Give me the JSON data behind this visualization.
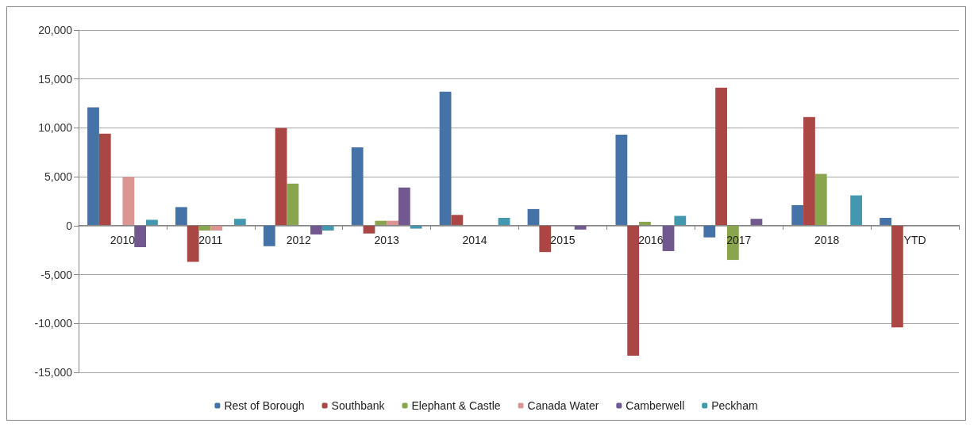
{
  "chart_data": {
    "type": "bar",
    "categories": [
      "2010",
      "2011",
      "2012",
      "2013",
      "2014",
      "2015",
      "2016",
      "2017",
      "2018",
      "YTD"
    ],
    "series": [
      {
        "name": "Rest of Borough",
        "color": "#4572a7",
        "values": [
          12100,
          1900,
          -2100,
          8000,
          13700,
          1700,
          9300,
          -1200,
          2100,
          800
        ]
      },
      {
        "name": "Southbank",
        "color": "#aa4643",
        "values": [
          9400,
          -3700,
          10000,
          -800,
          1100,
          -2700,
          -13300,
          14100,
          11100,
          -10400
        ]
      },
      {
        "name": "Elephant & Castle",
        "color": "#89a54e",
        "values": [
          null,
          -500,
          4300,
          500,
          null,
          null,
          400,
          -3500,
          5300,
          null
        ]
      },
      {
        "name": "Canada Water",
        "color": "#db9694",
        "values": [
          5000,
          -500,
          null,
          500,
          null,
          null,
          null,
          null,
          null,
          null
        ]
      },
      {
        "name": "Camberwell",
        "color": "#71588f",
        "values": [
          -2200,
          null,
          -900,
          3900,
          null,
          -400,
          -2600,
          700,
          null,
          null
        ]
      },
      {
        "name": "Peckham",
        "color": "#4198af",
        "values": [
          600,
          700,
          -500,
          -300,
          800,
          null,
          1000,
          null,
          3100,
          null
        ]
      }
    ],
    "ylim": [
      -15000,
      20000
    ],
    "yticks": [
      {
        "value": -15000,
        "label": "-15,000"
      },
      {
        "value": -10000,
        "label": "-10,000"
      },
      {
        "value": -5000,
        "label": "-5,000"
      },
      0,
      {
        "value": 5000,
        "label": "5,000"
      },
      {
        "value": 10000,
        "label": "10,000"
      },
      {
        "value": 15000,
        "label": "15,000"
      },
      {
        "value": 20000,
        "label": "20,000"
      }
    ],
    "grid": "y",
    "legend": "bottom"
  }
}
